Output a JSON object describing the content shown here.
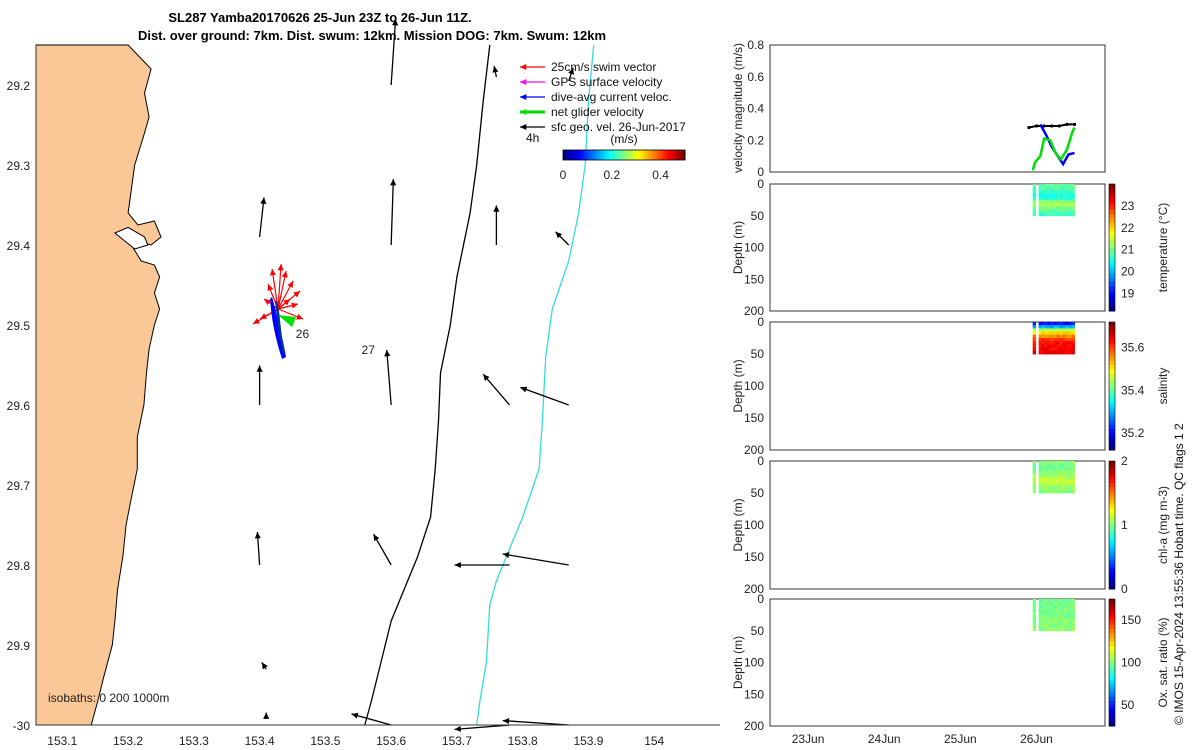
{
  "title_line1": "SL287 Yamba20170626 25-Jun 23Z to 26-Jun 11Z.",
  "title_line2": "Dist. over ground: 7km. Dist. swum: 12km. Mission DOG: 7km. Swum: 12km",
  "copyright": "© IMOS 15-Apr-2024 13:55:36 Hobart time. QC flags 1  2",
  "colors": {
    "land": "#fac897",
    "swim": "#ff0000",
    "gps": "#ff00ff",
    "current": "#0000ff",
    "net": "#00dd00",
    "sfc": "#000000",
    "isobath_200": "#000000",
    "isobath_1000": "#33dddd"
  },
  "chart_data": [
    {
      "type": "map",
      "xticks": [
        "153.1",
        "153.2",
        "153.3",
        "153.4",
        "153.5",
        "153.6",
        "153.7",
        "153.8",
        "153.9",
        "154"
      ],
      "yticks": [
        "29.2",
        "29.3",
        "29.4",
        "29.5",
        "29.6",
        "29.7",
        "29.8",
        "29.9",
        "-30"
      ],
      "xlim": [
        153.06,
        154.1
      ],
      "ylim": [
        -30.0,
        -29.15
      ],
      "legend": {
        "placement": "top-right",
        "entries": [
          "25cm/s swim vector",
          "GPS surface velocity",
          "dive-avg current veloc.",
          "net glider velocity",
          "sfc geo. vel. 26-Jun-2017"
        ],
        "time_label": "4h"
      },
      "colorbar": {
        "label": "(m/s)",
        "ticks": [
          "0",
          "0.2",
          "0.4"
        ],
        "range": [
          0,
          0.5
        ],
        "placement": "top"
      },
      "isobath_label": "isobaths: 0   200  1000m",
      "day_labels": [
        {
          "text": "26",
          "lon": 153.455,
          "lat": -29.51
        },
        {
          "text": "27",
          "lon": 153.555,
          "lat": -29.53
        }
      ],
      "glider_track": [
        [
          153.425,
          -29.47
        ],
        [
          153.428,
          -29.485
        ],
        [
          153.43,
          -29.5
        ],
        [
          153.432,
          -29.515
        ],
        [
          153.437,
          -29.535
        ]
      ],
      "coastline": [
        [
          153.06,
          -29.15
        ],
        [
          153.2,
          -29.15
        ],
        [
          153.235,
          -29.18
        ],
        [
          153.225,
          -29.21
        ],
        [
          153.232,
          -29.24
        ],
        [
          153.225,
          -29.26
        ],
        [
          153.21,
          -29.3
        ],
        [
          153.205,
          -29.33
        ],
        [
          153.2,
          -29.36
        ],
        [
          153.215,
          -29.375
        ],
        [
          153.24,
          -29.37
        ],
        [
          153.25,
          -29.39
        ],
        [
          153.235,
          -29.4
        ],
        [
          153.215,
          -29.395
        ],
        [
          153.205,
          -29.4
        ],
        [
          153.22,
          -29.42
        ],
        [
          153.24,
          -29.425
        ],
        [
          153.248,
          -29.44
        ],
        [
          153.24,
          -29.46
        ],
        [
          153.248,
          -29.48
        ],
        [
          153.24,
          -29.5
        ],
        [
          153.232,
          -29.53
        ],
        [
          153.228,
          -29.56
        ],
        [
          153.224,
          -29.6
        ],
        [
          153.214,
          -29.64
        ],
        [
          153.214,
          -29.68
        ],
        [
          153.204,
          -29.72
        ],
        [
          153.197,
          -29.75
        ],
        [
          153.192,
          -29.79
        ],
        [
          153.184,
          -29.83
        ],
        [
          153.18,
          -29.87
        ],
        [
          153.176,
          -29.9
        ],
        [
          153.163,
          -29.94
        ],
        [
          153.154,
          -29.97
        ],
        [
          153.144,
          -30.0
        ],
        [
          153.06,
          -30.0
        ]
      ],
      "lagoon": [
        [
          153.18,
          -29.385
        ],
        [
          153.2,
          -29.378
        ],
        [
          153.225,
          -29.39
        ],
        [
          153.23,
          -29.4
        ],
        [
          153.21,
          -29.405
        ],
        [
          153.195,
          -29.395
        ]
      ],
      "isobath_200": [
        [
          153.75,
          -29.15
        ],
        [
          153.74,
          -29.22
        ],
        [
          153.73,
          -29.3
        ],
        [
          153.72,
          -29.36
        ],
        [
          153.7,
          -29.44
        ],
        [
          153.69,
          -29.5
        ],
        [
          153.675,
          -29.56
        ],
        [
          153.672,
          -29.62
        ],
        [
          153.667,
          -29.68
        ],
        [
          153.66,
          -29.74
        ],
        [
          153.64,
          -29.79
        ],
        [
          153.62,
          -29.83
        ],
        [
          153.6,
          -29.87
        ],
        [
          153.585,
          -29.92
        ],
        [
          153.57,
          -29.97
        ],
        [
          153.56,
          -30.0
        ]
      ],
      "isobath_1000": [
        [
          153.908,
          -29.15
        ],
        [
          153.9,
          -29.22
        ],
        [
          153.895,
          -29.3
        ],
        [
          153.885,
          -29.36
        ],
        [
          153.87,
          -29.42
        ],
        [
          153.845,
          -29.48
        ],
        [
          153.835,
          -29.54
        ],
        [
          153.83,
          -29.62
        ],
        [
          153.825,
          -29.68
        ],
        [
          153.8,
          -29.74
        ],
        [
          153.78,
          -29.78
        ],
        [
          153.76,
          -29.82
        ],
        [
          153.75,
          -29.85
        ],
        [
          153.745,
          -29.92
        ],
        [
          153.735,
          -29.97
        ],
        [
          153.73,
          -30.0
        ]
      ],
      "sfc_vectors": [
        [
          153.6,
          -29.2,
          0.02,
          0.3
        ],
        [
          153.76,
          -29.19,
          -0.01,
          0.05
        ],
        [
          153.87,
          -29.195,
          0.02,
          0.06
        ],
        [
          153.4,
          -29.39,
          0.02,
          0.18
        ],
        [
          153.6,
          -29.4,
          0.01,
          0.3
        ],
        [
          153.76,
          -29.4,
          0.0,
          0.18
        ],
        [
          153.87,
          -29.4,
          -0.06,
          0.06
        ],
        [
          153.4,
          -29.6,
          0.0,
          0.18
        ],
        [
          153.6,
          -29.6,
          -0.02,
          0.25
        ],
        [
          153.78,
          -29.6,
          -0.12,
          0.14
        ],
        [
          153.87,
          -29.6,
          -0.22,
          0.08
        ],
        [
          153.4,
          -29.8,
          -0.01,
          0.15
        ],
        [
          153.6,
          -29.8,
          -0.08,
          0.14
        ],
        [
          153.78,
          -29.8,
          -0.25,
          0.0
        ],
        [
          153.87,
          -29.8,
          -0.3,
          0.05
        ],
        [
          153.41,
          -29.93,
          -0.02,
          0.03
        ],
        [
          153.41,
          -29.99,
          0.0,
          0.02
        ],
        [
          153.6,
          -30.0,
          -0.18,
          0.05
        ],
        [
          153.78,
          -30.0,
          -0.25,
          -0.02
        ],
        [
          153.87,
          -30.0,
          -0.3,
          0.02
        ]
      ]
    },
    {
      "type": "line",
      "ylabel": "velocity magnitude (m/s)",
      "ylim": [
        0,
        0.8
      ],
      "yticks": [
        "0",
        "0.2",
        "0.4",
        "0.6",
        "0.8"
      ],
      "series": [
        {
          "key": "sfc",
          "x": [
            25.9,
            26.0,
            26.1,
            26.2,
            26.3,
            26.4,
            26.5
          ],
          "values": [
            0.28,
            0.29,
            0.29,
            0.29,
            0.29,
            0.3,
            0.3
          ]
        },
        {
          "key": "current",
          "x": [
            26.05,
            26.12,
            26.2,
            26.28,
            26.35,
            26.42,
            26.5
          ],
          "values": [
            0.3,
            0.24,
            0.16,
            0.1,
            0.05,
            0.11,
            0.12
          ]
        },
        {
          "key": "net",
          "x": [
            25.95,
            25.98,
            26.05,
            26.1,
            26.18,
            26.25,
            26.32,
            26.4,
            26.47,
            26.5
          ],
          "values": [
            0.01,
            0.06,
            0.1,
            0.21,
            0.2,
            0.12,
            0.08,
            0.14,
            0.25,
            0.28
          ]
        }
      ]
    },
    {
      "type": "heatmap",
      "ylabel": "Depth (m)",
      "cblabel": "temperature (°C)",
      "ylim": [
        0,
        200
      ],
      "yticks": [
        "0",
        "50",
        "100",
        "150",
        "200"
      ],
      "cbticks": [
        "19",
        "20",
        "21",
        "22",
        "23"
      ],
      "crange": [
        18.2,
        24.0
      ],
      "xrange": [
        25.95,
        26.5
      ],
      "depthrange": [
        0,
        50
      ],
      "profile": [
        [
          0,
          21.0
        ],
        [
          10,
          20.8
        ],
        [
          20,
          20.4
        ],
        [
          30,
          21.4
        ],
        [
          40,
          21.0
        ],
        [
          50,
          20.6
        ]
      ]
    },
    {
      "type": "heatmap",
      "ylabel": "Depth (m)",
      "cblabel": "salinity",
      "ylim": [
        0,
        200
      ],
      "yticks": [
        "0",
        "50",
        "100",
        "150",
        "200"
      ],
      "cbticks": [
        "35.2",
        "35.4",
        "35.6"
      ],
      "crange": [
        35.12,
        35.72
      ],
      "xrange": [
        25.95,
        26.5
      ],
      "depthrange": [
        0,
        50
      ],
      "profile": [
        [
          0,
          35.18
        ],
        [
          6,
          35.25
        ],
        [
          12,
          35.45
        ],
        [
          20,
          35.55
        ],
        [
          28,
          35.62
        ],
        [
          35,
          35.64
        ],
        [
          50,
          35.66
        ]
      ]
    },
    {
      "type": "heatmap",
      "ylabel": "Depth (m)",
      "cblabel": "chl-a (mg m-3)",
      "ylim": [
        0,
        200
      ],
      "yticks": [
        "0",
        "50",
        "100",
        "150",
        "200"
      ],
      "cbticks": [
        "0",
        "1",
        "2"
      ],
      "crange": [
        0,
        2
      ],
      "xrange": [
        25.95,
        26.5
      ],
      "depthrange": [
        0,
        50
      ],
      "profile": [
        [
          0,
          1.05
        ],
        [
          10,
          0.95
        ],
        [
          20,
          1.05
        ],
        [
          30,
          1.15
        ],
        [
          40,
          1.05
        ],
        [
          50,
          1.0
        ]
      ]
    },
    {
      "type": "heatmap",
      "ylabel": "Depth (m)",
      "cblabel": "Ox. sat. ratio (%)",
      "ylim": [
        0,
        200
      ],
      "yticks": [
        "0",
        "50",
        "100",
        "150",
        "200"
      ],
      "xticks": [
        "23Jun",
        "24Jun",
        "25Jun",
        "26Jun"
      ],
      "xvalues": [
        23,
        24,
        25,
        26
      ],
      "cbticks": [
        "50",
        "100",
        "150"
      ],
      "crange": [
        25,
        175
      ],
      "xrange": [
        25.95,
        26.5
      ],
      "depthrange": [
        0,
        50
      ],
      "profile": [
        [
          0,
          98
        ],
        [
          25,
          100
        ],
        [
          50,
          102
        ]
      ]
    }
  ]
}
